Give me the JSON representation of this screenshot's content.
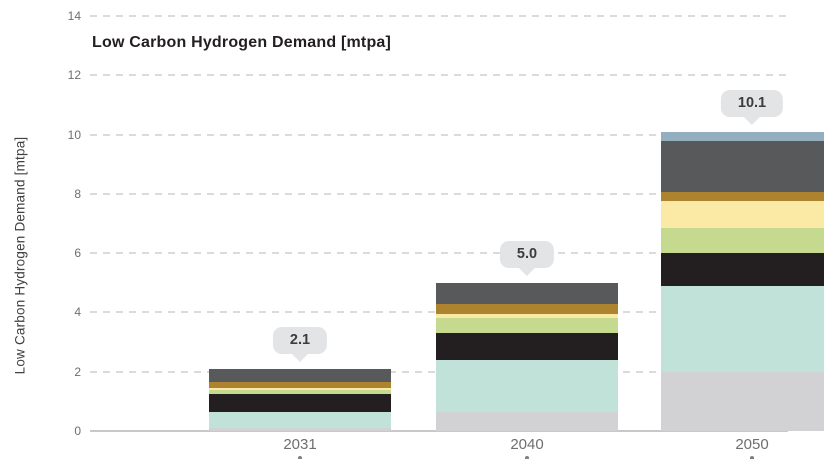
{
  "chart_data": {
    "type": "bar",
    "stacked": true,
    "title": "Low Carbon Hydrogen Demand [mtpa]",
    "ylabel": "Low Carbon Hydrogen Demand [mtpa]",
    "xlabel": "",
    "categories": [
      "2031",
      "2040",
      "2050"
    ],
    "totals": [
      "2.1",
      "5.0",
      "10.1"
    ],
    "ylim": [
      0,
      14
    ],
    "y_ticks": [
      0,
      2,
      4,
      6,
      8,
      10,
      12,
      14
    ],
    "grid": "dashed horizontal",
    "legend": "none",
    "series": [
      {
        "name": "light-gray-segment",
        "color": "#d2d2d4",
        "values": [
          0.1,
          0.65,
          2.0
        ]
      },
      {
        "name": "teal-segment",
        "color": "#c0e2d9",
        "values": [
          0.55,
          1.75,
          2.9
        ]
      },
      {
        "name": "black-segment",
        "color": "#231f20",
        "values": [
          0.6,
          0.9,
          1.1
        ]
      },
      {
        "name": "light-green-segment",
        "color": "#c5d98f",
        "values": [
          0.15,
          0.5,
          0.85
        ]
      },
      {
        "name": "pale-yellow-segment",
        "color": "#fbe9a6",
        "values": [
          0.05,
          0.15,
          0.9
        ]
      },
      {
        "name": "brown-segment",
        "color": "#ae832f",
        "values": [
          0.2,
          0.35,
          0.3
        ]
      },
      {
        "name": "dark-gray-segment",
        "color": "#58595b",
        "values": [
          0.45,
          0.7,
          1.75
        ]
      },
      {
        "name": "blue-gray-segment",
        "color": "#93afbf",
        "values": [
          0.0,
          0.0,
          0.3
        ]
      }
    ],
    "colors": {
      "gridline": "#dadbdc",
      "axis_line": "#c7c8ca",
      "tick_text": "#6d6e71",
      "title_text": "#231f20",
      "callout_bg": "#e3e4e6",
      "callout_text": "#3c3c3e"
    }
  }
}
